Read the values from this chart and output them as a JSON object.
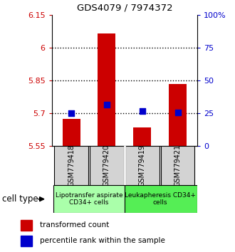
{
  "title": "GDS4079 / 7974372",
  "samples": [
    "GSM779418",
    "GSM779420",
    "GSM779419",
    "GSM779421"
  ],
  "bar_bottoms": [
    5.55,
    5.55,
    5.55,
    5.55
  ],
  "bar_tops": [
    5.675,
    6.065,
    5.635,
    5.835
  ],
  "percentile_values": [
    5.702,
    5.74,
    5.71,
    5.705
  ],
  "ylim": [
    5.55,
    6.15
  ],
  "yticks_left": [
    5.55,
    5.7,
    5.85,
    6.0,
    6.15
  ],
  "yticks_left_labels": [
    "5.55",
    "5.7",
    "5.85",
    "6",
    "6.15"
  ],
  "yticks_right_labels": [
    "0",
    "25",
    "50",
    "75",
    "100%"
  ],
  "yticks_right_values": [
    5.55,
    5.7,
    5.85,
    6.0,
    6.15
  ],
  "hlines": [
    5.7,
    5.85,
    6.0
  ],
  "bar_color": "#cc0000",
  "dot_color": "#0000cc",
  "left_tick_color": "#cc0000",
  "right_tick_color": "#0000cc",
  "cell_types": [
    "Lipotransfer aspirate\nCD34+ cells",
    "Leukapheresis CD34+\ncells"
  ],
  "cell_type_bg1": "#aaffaa",
  "cell_type_bg2": "#55ee55",
  "cell_type_label": "cell type",
  "legend_red": "transformed count",
  "legend_blue": "percentile rank within the sample"
}
